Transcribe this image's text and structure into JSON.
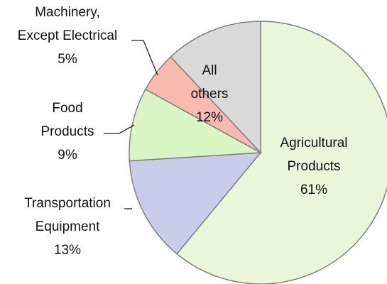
{
  "chart_data": {
    "type": "pie",
    "categories": [
      [
        "Agricultural",
        "Products"
      ],
      [
        "Transportation",
        "Equipment"
      ],
      [
        "Food",
        "Products"
      ],
      [
        "Machinery,",
        "Except Electrical"
      ],
      [
        "All",
        "others"
      ]
    ],
    "values": [
      61,
      13,
      9,
      5,
      12
    ],
    "value_labels": [
      "61%",
      "13%",
      "9%",
      "5%",
      "12%"
    ],
    "colors": [
      "#ebf5da",
      "#c9cbe8",
      "#d9f5c4",
      "#f8b9ae",
      "#d9d9d9"
    ]
  }
}
